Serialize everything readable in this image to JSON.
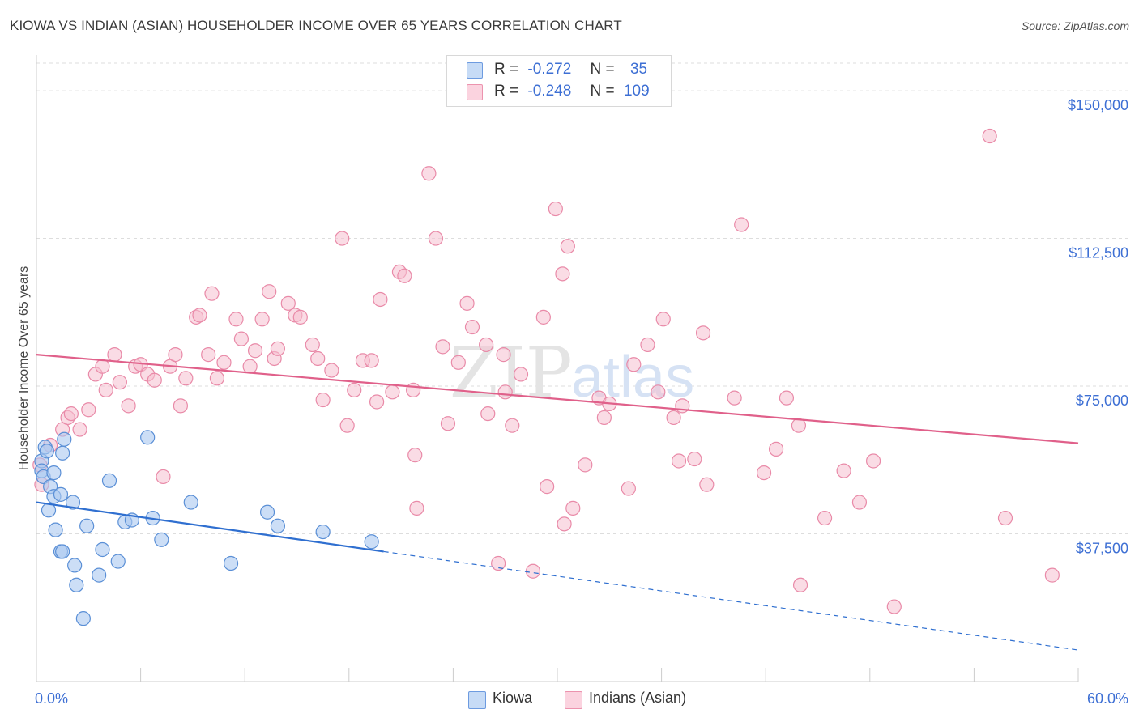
{
  "header": {
    "title": "KIOWA VS INDIAN (ASIAN) HOUSEHOLDER INCOME OVER 65 YEARS CORRELATION CHART",
    "source": "Source: ZipAtlas.com"
  },
  "legend": {
    "r_label": "R =",
    "n_label": "N =",
    "kiowa": {
      "r": "-0.272",
      "n": "35"
    },
    "indians": {
      "r": "-0.248",
      "n": "109"
    }
  },
  "colors": {
    "kiowa_fill": "#aac8f0",
    "kiowa_stroke": "#5a8fd6",
    "kiowa_line": "#2f6fd0",
    "indians_fill": "#f6c0d0",
    "indians_stroke": "#e98aa8",
    "indians_line": "#e0608a",
    "axis_label": "#3d6fd4",
    "grid": "#dddddd"
  },
  "chart_data": {
    "type": "scatter",
    "title": "KIOWA VS INDIAN (ASIAN) HOUSEHOLDER INCOME OVER 65 YEARS CORRELATION CHART",
    "xlabel": "",
    "ylabel": "Householder Income Over 65 years",
    "xlim": [
      0,
      60
    ],
    "ylim": [
      0,
      157000
    ],
    "x_tick_labels": [
      "0.0%",
      "60.0%"
    ],
    "y_ticks": [
      37500,
      75000,
      112500,
      150000
    ],
    "y_tick_labels": [
      "$37,500",
      "$75,000",
      "$112,500",
      "$150,000"
    ],
    "watermark": "ZIPatlas",
    "series": [
      {
        "name": "Kiowa",
        "r": -0.272,
        "n": 35,
        "trend": {
          "x0": 0,
          "y0": 45500,
          "x1": 20,
          "y1": 33000,
          "dash_to_x": 60,
          "dash_to_y": 8000
        },
        "points": [
          [
            0.3,
            56000
          ],
          [
            0.3,
            53500
          ],
          [
            0.4,
            52000
          ],
          [
            0.5,
            59500
          ],
          [
            0.6,
            58500
          ],
          [
            0.8,
            49500
          ],
          [
            1.0,
            53000
          ],
          [
            0.7,
            43500
          ],
          [
            1.0,
            47000
          ],
          [
            1.5,
            58000
          ],
          [
            1.6,
            61500
          ],
          [
            1.4,
            47500
          ],
          [
            1.1,
            38500
          ],
          [
            1.4,
            33000
          ],
          [
            1.5,
            33000
          ],
          [
            2.1,
            45500
          ],
          [
            2.2,
            29500
          ],
          [
            2.3,
            24500
          ],
          [
            2.9,
            39500
          ],
          [
            2.7,
            16000
          ],
          [
            3.6,
            27000
          ],
          [
            3.8,
            33500
          ],
          [
            4.2,
            51000
          ],
          [
            4.7,
            30500
          ],
          [
            5.1,
            40500
          ],
          [
            5.5,
            41000
          ],
          [
            6.4,
            62000
          ],
          [
            6.7,
            41500
          ],
          [
            7.2,
            36000
          ],
          [
            8.9,
            45500
          ],
          [
            11.2,
            30000
          ],
          [
            13.3,
            43000
          ],
          [
            13.9,
            39500
          ],
          [
            16.5,
            38000
          ],
          [
            19.3,
            35500
          ]
        ]
      },
      {
        "name": "Indians (Asian)",
        "r": -0.248,
        "n": 109,
        "trend": {
          "x0": 0,
          "y0": 83000,
          "x1": 60,
          "y1": 60500
        },
        "points": [
          [
            0.2,
            55000
          ],
          [
            0.3,
            50000
          ],
          [
            0.8,
            60000
          ],
          [
            1.5,
            64000
          ],
          [
            1.8,
            67000
          ],
          [
            2.0,
            68000
          ],
          [
            2.5,
            64000
          ],
          [
            3.0,
            69000
          ],
          [
            3.4,
            78000
          ],
          [
            3.8,
            80000
          ],
          [
            4.0,
            74000
          ],
          [
            4.5,
            83000
          ],
          [
            4.8,
            76000
          ],
          [
            5.3,
            70000
          ],
          [
            5.7,
            80000
          ],
          [
            6.0,
            80500
          ],
          [
            6.4,
            78000
          ],
          [
            6.8,
            76500
          ],
          [
            7.3,
            52000
          ],
          [
            7.7,
            80000
          ],
          [
            8.0,
            83000
          ],
          [
            8.3,
            70000
          ],
          [
            8.6,
            77000
          ],
          [
            9.2,
            92500
          ],
          [
            9.4,
            93000
          ],
          [
            9.9,
            83000
          ],
          [
            10.1,
            98500
          ],
          [
            10.4,
            77000
          ],
          [
            10.8,
            81000
          ],
          [
            11.5,
            92000
          ],
          [
            11.8,
            87000
          ],
          [
            12.3,
            80000
          ],
          [
            12.6,
            84000
          ],
          [
            13.0,
            92000
          ],
          [
            13.4,
            99000
          ],
          [
            13.7,
            82000
          ],
          [
            13.9,
            84500
          ],
          [
            14.5,
            96000
          ],
          [
            14.9,
            93000
          ],
          [
            15.2,
            92500
          ],
          [
            15.9,
            85500
          ],
          [
            16.2,
            82000
          ],
          [
            16.5,
            71500
          ],
          [
            17.0,
            79000
          ],
          [
            17.6,
            112500
          ],
          [
            17.9,
            65000
          ],
          [
            18.3,
            74000
          ],
          [
            18.8,
            81500
          ],
          [
            19.3,
            81500
          ],
          [
            19.6,
            71000
          ],
          [
            19.8,
            97000
          ],
          [
            20.5,
            73500
          ],
          [
            20.9,
            104000
          ],
          [
            21.2,
            103000
          ],
          [
            21.7,
            74000
          ],
          [
            21.9,
            44000
          ],
          [
            21.8,
            57500
          ],
          [
            22.6,
            129000
          ],
          [
            23.0,
            112500
          ],
          [
            23.4,
            85000
          ],
          [
            23.7,
            65500
          ],
          [
            24.3,
            81000
          ],
          [
            24.8,
            96000
          ],
          [
            25.1,
            90000
          ],
          [
            25.9,
            85500
          ],
          [
            26.0,
            68000
          ],
          [
            26.6,
            30000
          ],
          [
            26.9,
            83000
          ],
          [
            27.0,
            73500
          ],
          [
            27.4,
            65000
          ],
          [
            27.9,
            78000
          ],
          [
            28.6,
            28000
          ],
          [
            29.2,
            92500
          ],
          [
            29.4,
            49500
          ],
          [
            29.9,
            120000
          ],
          [
            30.6,
            110500
          ],
          [
            30.3,
            103500
          ],
          [
            30.4,
            40000
          ],
          [
            30.9,
            44000
          ],
          [
            31.6,
            55000
          ],
          [
            32.4,
            72000
          ],
          [
            32.7,
            67000
          ],
          [
            33.0,
            70500
          ],
          [
            34.1,
            49000
          ],
          [
            34.4,
            80500
          ],
          [
            35.2,
            85500
          ],
          [
            35.8,
            73500
          ],
          [
            36.1,
            92000
          ],
          [
            36.7,
            67000
          ],
          [
            37.0,
            56000
          ],
          [
            37.2,
            70000
          ],
          [
            37.9,
            56500
          ],
          [
            38.4,
            88500
          ],
          [
            38.6,
            50000
          ],
          [
            40.2,
            72000
          ],
          [
            40.6,
            116000
          ],
          [
            41.9,
            53000
          ],
          [
            42.6,
            59000
          ],
          [
            43.2,
            72000
          ],
          [
            43.9,
            65000
          ],
          [
            44.0,
            24500
          ],
          [
            45.4,
            41500
          ],
          [
            46.5,
            53500
          ],
          [
            47.4,
            45500
          ],
          [
            48.2,
            56000
          ],
          [
            49.4,
            19000
          ],
          [
            54.9,
            138500
          ],
          [
            55.8,
            41500
          ],
          [
            58.5,
            27000
          ]
        ]
      }
    ]
  },
  "bottom_legend": {
    "kiowa_label": "Kiowa",
    "indians_label": "Indians (Asian)"
  },
  "axes": {
    "x_min_label": "0.0%",
    "x_max_label": "60.0%"
  }
}
